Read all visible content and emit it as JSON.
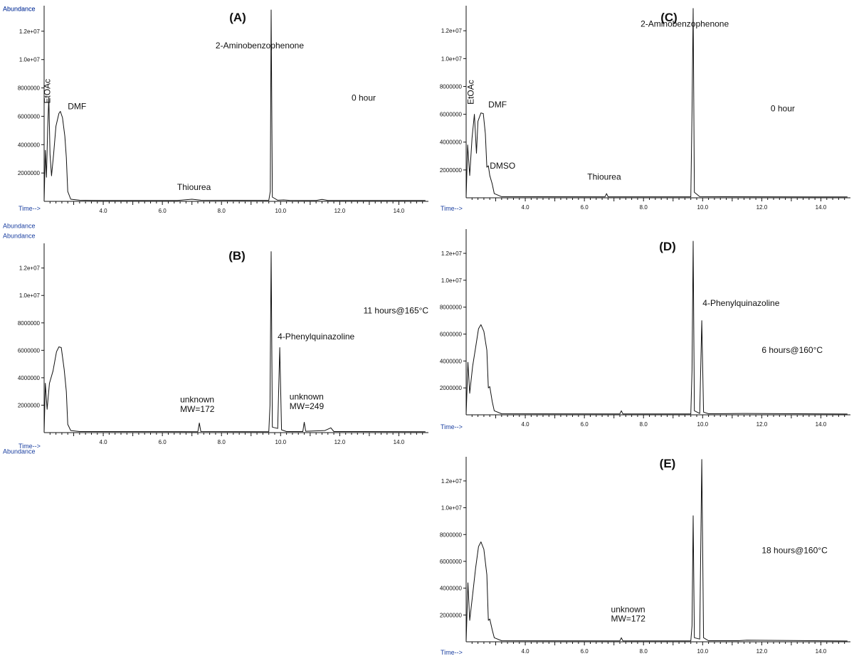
{
  "chart_data": [
    {
      "id": "A",
      "type": "line",
      "title": "(A)",
      "ylabel": "Abundance",
      "xlabel": "Time-->",
      "xlim": [
        2.0,
        15.0
      ],
      "ylim": [
        0,
        13800000
      ],
      "x_ticks": [
        4.0,
        6.0,
        8.0,
        10.0,
        12.0,
        14.0
      ],
      "y_ticks": [
        2000000,
        4000000,
        6000000,
        8000000,
        10000000,
        12000000
      ],
      "y_tick_labels": [
        "2000000",
        "4000000",
        "6000000",
        "8000000",
        "1.0e+07",
        "1.2e+07"
      ],
      "points": [
        [
          2.0,
          0
        ],
        [
          2.04,
          3600000
        ],
        [
          2.08,
          1700000
        ],
        [
          2.12,
          5200000
        ],
        [
          2.16,
          7300000
        ],
        [
          2.2,
          3300000
        ],
        [
          2.25,
          1800000
        ],
        [
          2.32,
          3300000
        ],
        [
          2.4,
          5300000
        ],
        [
          2.5,
          6200000
        ],
        [
          2.55,
          6350000
        ],
        [
          2.62,
          5900000
        ],
        [
          2.7,
          4600000
        ],
        [
          2.75,
          3100000
        ],
        [
          2.8,
          700000
        ],
        [
          2.9,
          150000
        ],
        [
          3.2,
          80000
        ],
        [
          4.0,
          60000
        ],
        [
          6.5,
          60000
        ],
        [
          7.0,
          150000
        ],
        [
          7.3,
          80000
        ],
        [
          9.6,
          70000
        ],
        [
          9.65,
          700000
        ],
        [
          9.68,
          13500000
        ],
        [
          9.72,
          300000
        ],
        [
          9.9,
          80000
        ],
        [
          10.1,
          100000
        ],
        [
          10.3,
          70000
        ],
        [
          11.2,
          60000
        ],
        [
          11.4,
          140000
        ],
        [
          11.6,
          60000
        ],
        [
          14.9,
          60000
        ]
      ],
      "annotations": [
        {
          "text": "EtOAc",
          "x": 2.2,
          "y": 6900000,
          "rotate": true
        },
        {
          "text": "DMF",
          "x": 2.8,
          "y": 6500000
        },
        {
          "text": "2-Aminobenzophenone",
          "x": 7.8,
          "y": 10800000
        },
        {
          "text": "0 hour",
          "x": 12.4,
          "y": 7100000
        },
        {
          "text": "Thiourea",
          "x": 6.5,
          "y": 800000
        }
      ]
    },
    {
      "id": "B",
      "type": "line",
      "title": "(B)",
      "ylabel": "Abundance",
      "xlabel": "Time-->",
      "xlim": [
        2.0,
        15.0
      ],
      "ylim": [
        0,
        13800000
      ],
      "x_ticks": [
        4.0,
        6.0,
        8.0,
        10.0,
        12.0,
        14.0
      ],
      "y_ticks": [
        2000000,
        4000000,
        6000000,
        8000000,
        10000000,
        12000000
      ],
      "y_tick_labels": [
        "2000000",
        "4000000",
        "6000000",
        "8000000",
        "1.0e+07",
        "1.2e+07"
      ],
      "points": [
        [
          2.0,
          0
        ],
        [
          2.04,
          3600000
        ],
        [
          2.1,
          1700000
        ],
        [
          2.18,
          3600000
        ],
        [
          2.3,
          4500000
        ],
        [
          2.42,
          5900000
        ],
        [
          2.5,
          6250000
        ],
        [
          2.58,
          6200000
        ],
        [
          2.68,
          4600000
        ],
        [
          2.75,
          3000000
        ],
        [
          2.8,
          600000
        ],
        [
          2.9,
          150000
        ],
        [
          3.2,
          80000
        ],
        [
          7.2,
          70000
        ],
        [
          7.25,
          700000
        ],
        [
          7.3,
          80000
        ],
        [
          9.6,
          70000
        ],
        [
          9.64,
          2000000
        ],
        [
          9.68,
          13200000
        ],
        [
          9.72,
          400000
        ],
        [
          9.9,
          300000
        ],
        [
          9.97,
          6200000
        ],
        [
          10.03,
          200000
        ],
        [
          10.2,
          80000
        ],
        [
          10.75,
          80000
        ],
        [
          10.8,
          750000
        ],
        [
          10.85,
          100000
        ],
        [
          11.5,
          150000
        ],
        [
          11.7,
          350000
        ],
        [
          11.8,
          80000
        ],
        [
          14.9,
          70000
        ]
      ],
      "annotations": [
        {
          "text": "11 hours@165°C",
          "x": 12.8,
          "y": 8700000
        },
        {
          "text": "4-Phenylquinazoline",
          "x": 9.9,
          "y": 6800000
        },
        {
          "text": "unknown",
          "x": 6.6,
          "y": 2200000
        },
        {
          "text": "MW=172",
          "x": 6.6,
          "y": 1500000
        },
        {
          "text": "unknown",
          "x": 10.3,
          "y": 2400000
        },
        {
          "text": "MW=249",
          "x": 10.3,
          "y": 1700000
        }
      ]
    },
    {
      "id": "C",
      "type": "line",
      "title": "(C)",
      "ylabel": "Abundance",
      "xlabel": "Time-->",
      "xlim": [
        2.0,
        15.0
      ],
      "ylim": [
        0,
        13800000
      ],
      "x_ticks": [
        4.0,
        6.0,
        8.0,
        10.0,
        12.0,
        14.0
      ],
      "y_ticks": [
        2000000,
        4000000,
        6000000,
        8000000,
        10000000,
        12000000
      ],
      "y_tick_labels": [
        "2000000",
        "4000000",
        "6000000",
        "8000000",
        "1.0e+07",
        "1.2e+07"
      ],
      "points": [
        [
          2.0,
          0
        ],
        [
          2.05,
          3800000
        ],
        [
          2.12,
          1600000
        ],
        [
          2.2,
          4300000
        ],
        [
          2.28,
          6000000
        ],
        [
          2.35,
          3200000
        ],
        [
          2.4,
          5500000
        ],
        [
          2.5,
          6100000
        ],
        [
          2.58,
          6050000
        ],
        [
          2.65,
          4600000
        ],
        [
          2.7,
          2200000
        ],
        [
          2.75,
          2300000
        ],
        [
          2.8,
          1600000
        ],
        [
          2.88,
          1000000
        ],
        [
          2.95,
          300000
        ],
        [
          3.2,
          80000
        ],
        [
          6.7,
          70000
        ],
        [
          6.75,
          300000
        ],
        [
          6.8,
          70000
        ],
        [
          9.6,
          70000
        ],
        [
          9.64,
          6200000
        ],
        [
          9.68,
          13600000
        ],
        [
          9.72,
          400000
        ],
        [
          9.9,
          80000
        ],
        [
          14.9,
          60000
        ]
      ],
      "annotations": [
        {
          "text": "EtOAc",
          "x": 2.25,
          "y": 6700000,
          "rotate": true
        },
        {
          "text": "DMF",
          "x": 2.75,
          "y": 6500000
        },
        {
          "text": "DMSO",
          "x": 2.8,
          "y": 2100000
        },
        {
          "text": "2-Aminobenzophenone",
          "x": 7.9,
          "y": 12300000
        },
        {
          "text": "0 hour",
          "x": 12.3,
          "y": 6200000
        },
        {
          "text": "Thiourea",
          "x": 6.1,
          "y": 1300000
        }
      ]
    },
    {
      "id": "D",
      "type": "line",
      "title": "(D)",
      "ylabel": "Abundance",
      "xlabel": "Time-->",
      "xlim": [
        2.0,
        15.0
      ],
      "ylim": [
        0,
        13800000
      ],
      "x_ticks": [
        4.0,
        6.0,
        8.0,
        10.0,
        12.0,
        14.0
      ],
      "y_ticks": [
        2000000,
        4000000,
        6000000,
        8000000,
        10000000,
        12000000
      ],
      "y_tick_labels": [
        "2000000",
        "4000000",
        "6000000",
        "8000000",
        "1.0e+07",
        "1.2e+07"
      ],
      "points": [
        [
          2.0,
          0
        ],
        [
          2.06,
          3900000
        ],
        [
          2.12,
          1600000
        ],
        [
          2.22,
          3600000
        ],
        [
          2.32,
          5000000
        ],
        [
          2.42,
          6400000
        ],
        [
          2.5,
          6700000
        ],
        [
          2.6,
          6200000
        ],
        [
          2.7,
          4800000
        ],
        [
          2.75,
          2000000
        ],
        [
          2.8,
          2100000
        ],
        [
          2.88,
          1000000
        ],
        [
          2.95,
          300000
        ],
        [
          3.2,
          80000
        ],
        [
          7.2,
          70000
        ],
        [
          7.25,
          300000
        ],
        [
          7.3,
          70000
        ],
        [
          9.6,
          70000
        ],
        [
          9.64,
          3300000
        ],
        [
          9.68,
          12900000
        ],
        [
          9.72,
          300000
        ],
        [
          9.9,
          100000
        ],
        [
          9.97,
          7000000
        ],
        [
          10.03,
          200000
        ],
        [
          10.2,
          80000
        ],
        [
          11.4,
          100000
        ],
        [
          14.9,
          60000
        ]
      ],
      "annotations": [
        {
          "text": "4-Phenylquinazoline",
          "x": 10.0,
          "y": 8100000
        },
        {
          "text": "6 hours@160°C",
          "x": 12.0,
          "y": 4600000
        }
      ]
    },
    {
      "id": "E",
      "type": "line",
      "title": "(E)",
      "ylabel": "Abundance",
      "xlabel": "Time-->",
      "xlim": [
        2.0,
        15.0
      ],
      "ylim": [
        0,
        13800000
      ],
      "x_ticks": [
        4.0,
        6.0,
        8.0,
        10.0,
        12.0,
        14.0
      ],
      "y_ticks": [
        2000000,
        4000000,
        6000000,
        8000000,
        10000000,
        12000000
      ],
      "y_tick_labels": [
        "2000000",
        "4000000",
        "6000000",
        "8000000",
        "1.0e+07",
        "1.2e+07"
      ],
      "points": [
        [
          2.0,
          0
        ],
        [
          2.06,
          4400000
        ],
        [
          2.12,
          1600000
        ],
        [
          2.22,
          3500000
        ],
        [
          2.32,
          5500000
        ],
        [
          2.42,
          7100000
        ],
        [
          2.5,
          7450000
        ],
        [
          2.6,
          6900000
        ],
        [
          2.7,
          5000000
        ],
        [
          2.75,
          1600000
        ],
        [
          2.8,
          1700000
        ],
        [
          2.88,
          900000
        ],
        [
          2.95,
          300000
        ],
        [
          3.2,
          80000
        ],
        [
          7.2,
          70000
        ],
        [
          7.25,
          300000
        ],
        [
          7.3,
          70000
        ],
        [
          9.6,
          70000
        ],
        [
          9.64,
          1200000
        ],
        [
          9.68,
          9400000
        ],
        [
          9.72,
          300000
        ],
        [
          9.9,
          200000
        ],
        [
          9.97,
          13600000
        ],
        [
          10.03,
          300000
        ],
        [
          10.2,
          80000
        ],
        [
          11.2,
          80000
        ],
        [
          11.5,
          120000
        ],
        [
          14.9,
          60000
        ]
      ],
      "annotations": [
        {
          "text": "unknown",
          "x": 6.9,
          "y": 2200000
        },
        {
          "text": "MW=172",
          "x": 6.9,
          "y": 1500000
        },
        {
          "text": "18 hours@160°C",
          "x": 12.0,
          "y": 6600000
        }
      ]
    }
  ]
}
